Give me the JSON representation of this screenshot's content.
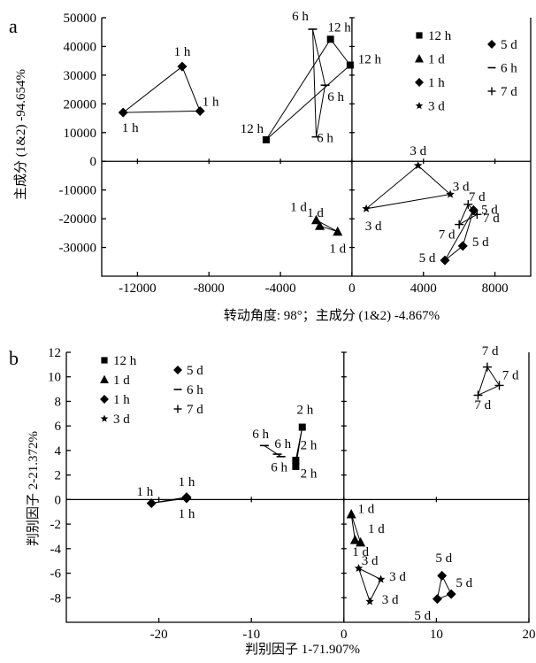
{
  "chart_data": [
    {
      "panel": "a",
      "type": "scatter",
      "xlabel": "转动角度: 98°；主成分 (1&2) -4.867%",
      "ylabel": "主成分 (1&2) -94.654%",
      "xlim": [
        -14000,
        10000
      ],
      "ylim": [
        -40000,
        50000
      ],
      "x_ticks": [
        -12000,
        -8000,
        -4000,
        0,
        4000,
        8000
      ],
      "y_ticks": [
        50000,
        40000,
        30000,
        20000,
        10000,
        0,
        -10000,
        -20000,
        -30000
      ],
      "legend": [
        "12 h",
        "1 d",
        "1 h",
        "3 d",
        "5 d",
        "6 h",
        "7 d"
      ],
      "legend_markers": [
        "square",
        "triangle",
        "diamond",
        "star",
        "diamond",
        "dash",
        "plus"
      ],
      "series": [
        {
          "name": "1 h",
          "marker": "diamond",
          "x": [
            -9500,
            -8500,
            -12800
          ],
          "y": [
            33000,
            17500,
            17000
          ]
        },
        {
          "name": "12 h",
          "marker": "square",
          "x": [
            -1200,
            -4800,
            -100
          ],
          "y": [
            42500,
            7500,
            33500
          ]
        },
        {
          "name": "6 h",
          "marker": "dash",
          "x": [
            -2200,
            -1500,
            -2000
          ],
          "y": [
            46000,
            26500,
            8500
          ]
        },
        {
          "name": "1 d",
          "marker": "triangle",
          "x": [
            -2000,
            -1800,
            -800
          ],
          "y": [
            -20500,
            -22500,
            -24500
          ]
        },
        {
          "name": "3 d",
          "marker": "star",
          "x": [
            3700,
            5500,
            800
          ],
          "y": [
            -1500,
            -11500,
            -16500
          ]
        },
        {
          "name": "7 d",
          "marker": "plus",
          "x": [
            6500,
            7000,
            6000
          ],
          "y": [
            -15000,
            -18500,
            -22000
          ]
        },
        {
          "name": "5 d",
          "marker": "diamond",
          "x": [
            6800,
            6200,
            5200
          ],
          "y": [
            -17000,
            -29500,
            -34500
          ]
        }
      ]
    },
    {
      "panel": "b",
      "type": "scatter",
      "xlabel": "判别因子 1-71.907%",
      "ylabel": "判别因子 2-21.372%",
      "xlim": [
        -30,
        20
      ],
      "ylim": [
        -10,
        12
      ],
      "x_ticks": [
        -20,
        -10,
        0,
        10,
        20
      ],
      "y_ticks": [
        12,
        10,
        8,
        6,
        4,
        2,
        0,
        -2,
        -4,
        -6,
        -8
      ],
      "legend": [
        "12 h",
        "1 d",
        "1 h",
        "3 d",
        "5 d",
        "6 h",
        "7 d"
      ],
      "legend_markers": [
        "square",
        "triangle",
        "diamond",
        "star",
        "diamond",
        "dash",
        "plus"
      ],
      "series": [
        {
          "name": "1 h",
          "marker": "diamond",
          "x": [
            -20.8,
            -17,
            -17
          ],
          "y": [
            -0.3,
            0.2,
            0.1
          ]
        },
        {
          "name": "12 h",
          "marker": "square",
          "x": [
            -4.5,
            -5.2,
            -5.2
          ],
          "y": [
            5.9,
            3.2,
            2.7
          ]
        },
        {
          "name": "6 h",
          "marker": "dash",
          "x": [
            -8.6,
            -7.2,
            -6.8
          ],
          "y": [
            4.4,
            3.7,
            3.5
          ]
        },
        {
          "name": "7 d",
          "marker": "plus",
          "x": [
            15.5,
            16.8,
            14.5
          ],
          "y": [
            10.8,
            9.3,
            8.5
          ]
        },
        {
          "name": "1 d",
          "marker": "triangle",
          "x": [
            0.8,
            1.2,
            1.8
          ],
          "y": [
            -1.2,
            -3.3,
            -3.5
          ]
        },
        {
          "name": "3 d",
          "marker": "star",
          "x": [
            1.6,
            4,
            2.8
          ],
          "y": [
            -5.6,
            -6.5,
            -8.3
          ]
        },
        {
          "name": "5 d",
          "marker": "diamond",
          "x": [
            10.6,
            11.6,
            10.1
          ],
          "y": [
            -6.2,
            -7.7,
            -8.1
          ]
        }
      ],
      "point_labels": [
        {
          "text": "1 h",
          "x": -21.5,
          "y": 0.3
        },
        {
          "text": "1 h",
          "x": -17,
          "y": 1.1
        },
        {
          "text": "1 h",
          "x": -17,
          "y": -1.5
        },
        {
          "text": "2 h",
          "x": -4.2,
          "y": 7
        },
        {
          "text": "2 h",
          "x": -3.8,
          "y": 4.1
        },
        {
          "text": "2 h",
          "x": -3.8,
          "y": 1.8
        },
        {
          "text": "6 h",
          "x": -9,
          "y": 5
        },
        {
          "text": "6 h",
          "x": -6.6,
          "y": 4.2
        },
        {
          "text": "6 h",
          "x": -7,
          "y": 2.3
        },
        {
          "text": "7 d",
          "x": 15.8,
          "y": 11.8
        },
        {
          "text": "7 d",
          "x": 18,
          "y": 9.8
        },
        {
          "text": "7 d",
          "x": 15,
          "y": 7.4
        },
        {
          "text": "1 d",
          "x": 2.4,
          "y": -1.1
        },
        {
          "text": "1 d",
          "x": 3.5,
          "y": -2.7
        },
        {
          "text": "1 d",
          "x": 1.8,
          "y": -4.6
        },
        {
          "text": "3 d",
          "x": 2.8,
          "y": -5.3
        },
        {
          "text": "3 d",
          "x": 5.8,
          "y": -6.6
        },
        {
          "text": "3 d",
          "x": 5,
          "y": -8.5
        },
        {
          "text": "5 d",
          "x": 10.8,
          "y": -5.1
        },
        {
          "text": "5 d",
          "x": 13,
          "y": -7.1
        },
        {
          "text": "5 d",
          "x": 8.5,
          "y": -9.8
        }
      ]
    }
  ]
}
